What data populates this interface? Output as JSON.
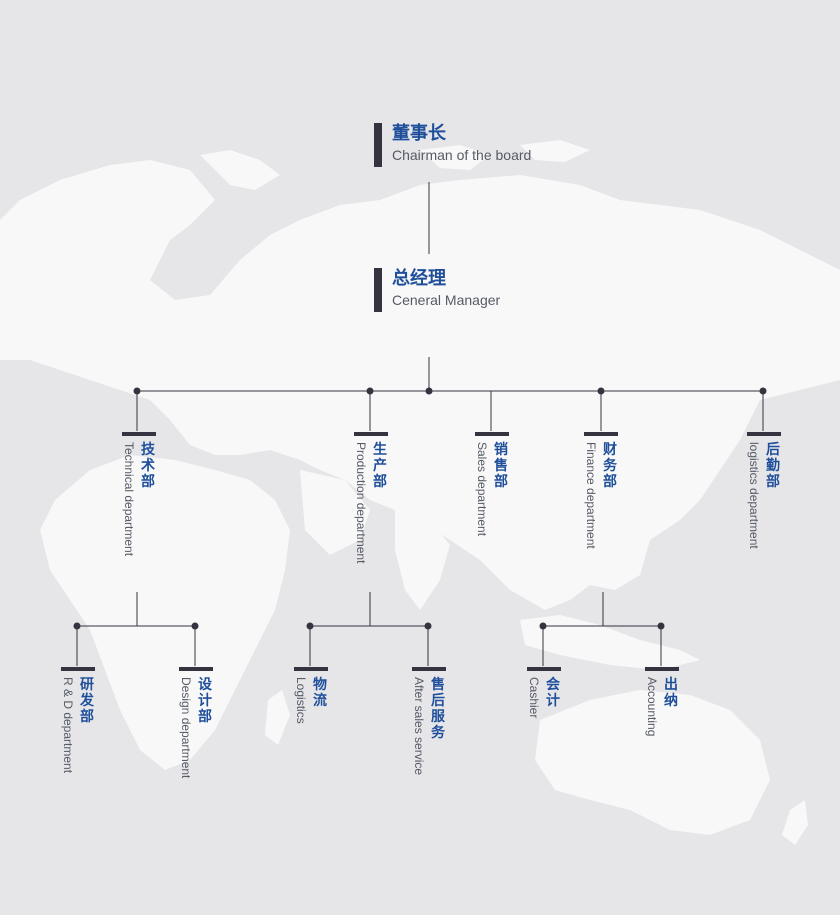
{
  "top": {
    "chairman": {
      "cn": "董事长",
      "en": "Chairman of the board"
    },
    "manager": {
      "cn": "总经理",
      "en": "Ceneral Manager"
    }
  },
  "departments": {
    "technical": {
      "cn": "技术部",
      "en": "Technical department"
    },
    "production": {
      "cn": "生产部",
      "en": "Production department"
    },
    "sales": {
      "cn": "销售部",
      "en": "Sales department"
    },
    "finance": {
      "cn": "财务部",
      "en": "Finance department"
    },
    "logistics": {
      "cn": "后勤部",
      "en": "logistics department"
    }
  },
  "subunits": {
    "rd": {
      "cn": "研发部",
      "en": "R & D department"
    },
    "design": {
      "cn": "设计部",
      "en": "Design department"
    },
    "logistics": {
      "cn": "物流",
      "en": "Logistics"
    },
    "after_sales": {
      "cn": "售后服务",
      "en": "After sales service"
    },
    "cashier": {
      "cn": "会计",
      "en": "Cashier"
    },
    "accounting": {
      "cn": "出纳",
      "en": "Accounting"
    }
  },
  "colors": {
    "background": "#e6e6e9",
    "map": "#f8f8f9",
    "bar": "#33343f",
    "cn_text": "#1f4f9a",
    "en_text": "#555a64",
    "line": "#33343f"
  }
}
